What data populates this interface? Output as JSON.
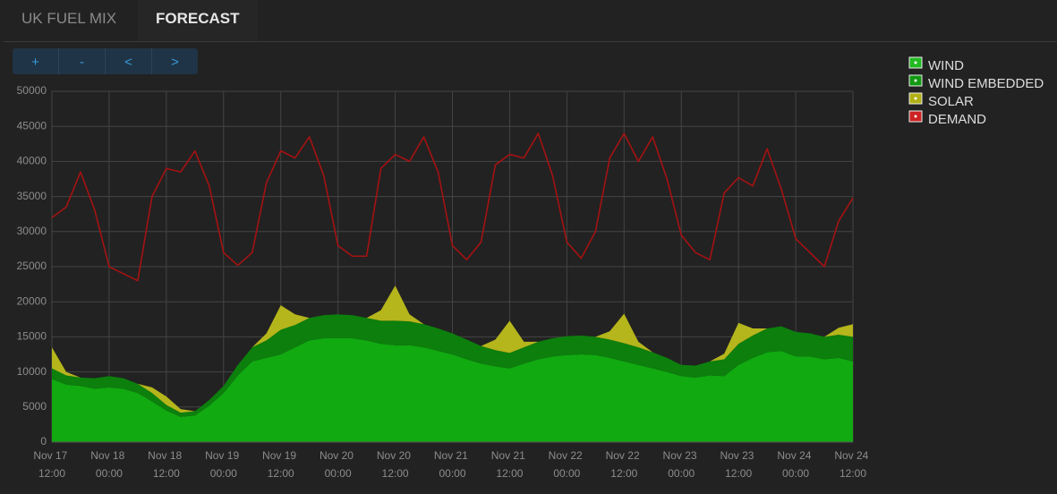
{
  "tabs": [
    "UK FUEL MIX",
    "FORECAST"
  ],
  "controls": [
    "+",
    "-",
    "<",
    ">"
  ],
  "chart_data": {
    "type": "area",
    "stacked": true,
    "grid": true,
    "legend": "right",
    "x": [
      "Nov 17 12:00",
      "Nov 17 15:00",
      "Nov 17 18:00",
      "Nov 17 21:00",
      "Nov 18 00:00",
      "Nov 18 03:00",
      "Nov 18 06:00",
      "Nov 18 09:00",
      "Nov 18 12:00",
      "Nov 18 15:00",
      "Nov 18 18:00",
      "Nov 18 21:00",
      "Nov 19 00:00",
      "Nov 19 03:00",
      "Nov 19 06:00",
      "Nov 19 09:00",
      "Nov 19 12:00",
      "Nov 19 15:00",
      "Nov 19 18:00",
      "Nov 19 21:00",
      "Nov 20 00:00",
      "Nov 20 03:00",
      "Nov 20 06:00",
      "Nov 20 09:00",
      "Nov 20 12:00",
      "Nov 20 15:00",
      "Nov 20 18:00",
      "Nov 20 21:00",
      "Nov 21 00:00",
      "Nov 21 03:00",
      "Nov 21 06:00",
      "Nov 21 09:00",
      "Nov 21 12:00",
      "Nov 21 15:00",
      "Nov 21 18:00",
      "Nov 21 21:00",
      "Nov 22 00:00",
      "Nov 22 03:00",
      "Nov 22 06:00",
      "Nov 22 09:00",
      "Nov 22 12:00",
      "Nov 22 15:00",
      "Nov 22 18:00",
      "Nov 22 21:00",
      "Nov 23 00:00",
      "Nov 23 03:00",
      "Nov 23 06:00",
      "Nov 23 09:00",
      "Nov 23 12:00",
      "Nov 23 15:00",
      "Nov 23 18:00",
      "Nov 23 21:00",
      "Nov 24 00:00",
      "Nov 24 03:00",
      "Nov 24 06:00",
      "Nov 24 09:00",
      "Nov 24 12:00"
    ],
    "xticks": [
      "Nov 17 12:00",
      "Nov 18 00:00",
      "Nov 18 12:00",
      "Nov 19 00:00",
      "Nov 19 12:00",
      "Nov 20 00:00",
      "Nov 20 12:00",
      "Nov 21 00:00",
      "Nov 21 12:00",
      "Nov 22 00:00",
      "Nov 22 12:00",
      "Nov 23 00:00",
      "Nov 23 12:00",
      "Nov 24 00:00",
      "Nov 24 12:00"
    ],
    "ylim": [
      0,
      50000
    ],
    "yticks": [
      0,
      5000,
      10000,
      15000,
      20000,
      25000,
      30000,
      35000,
      40000,
      45000,
      50000
    ],
    "series": [
      {
        "name": "WIND",
        "color": "#11aa11",
        "legend_color": "#22bb22",
        "values": [
          9000,
          8200,
          8000,
          7600,
          7800,
          7600,
          7000,
          5800,
          4500,
          3600,
          3800,
          5200,
          7000,
          9500,
          11500,
          12000,
          12500,
          13500,
          14500,
          14800,
          14800,
          14800,
          14500,
          14000,
          13800,
          13800,
          13500,
          13000,
          12500,
          11800,
          11200,
          10800,
          10500,
          11200,
          11800,
          12200,
          12400,
          12500,
          12400,
          12000,
          11500,
          11000,
          10500,
          10000,
          9400,
          9200,
          9500,
          9400,
          11000,
          12000,
          12800,
          13000,
          12200,
          12200,
          11800,
          12000,
          11500
        ]
      },
      {
        "name": "WIND EMBEDDED",
        "color": "#0c7f0c",
        "legend_color": "#129912",
        "values": [
          1500,
          1300,
          1200,
          1500,
          1600,
          1500,
          1300,
          1200,
          800,
          600,
          600,
          800,
          1000,
          1500,
          2000,
          2500,
          3500,
          3200,
          3200,
          3300,
          3400,
          3300,
          3200,
          3300,
          3500,
          3400,
          3300,
          3200,
          3000,
          2800,
          2500,
          2300,
          2200,
          2300,
          2500,
          2600,
          2700,
          2700,
          2600,
          2600,
          2600,
          2500,
          2300,
          2000,
          1600,
          1700,
          2000,
          2400,
          3000,
          3200,
          3400,
          3500,
          3500,
          3300,
          3200,
          3300,
          3500
        ]
      },
      {
        "name": "SOLAR",
        "color": "#b5b51c",
        "legend_color": "#b0b016",
        "values": [
          3000,
          500,
          0,
          0,
          0,
          0,
          0,
          800,
          1200,
          500,
          0,
          0,
          0,
          0,
          0,
          1000,
          3500,
          1500,
          0,
          0,
          0,
          0,
          0,
          1500,
          5000,
          1000,
          0,
          0,
          0,
          0,
          0,
          1500,
          4600,
          800,
          0,
          0,
          0,
          0,
          0,
          1200,
          4200,
          800,
          0,
          0,
          0,
          0,
          0,
          800,
          3000,
          1000,
          0,
          0,
          0,
          0,
          0,
          1000,
          1800
        ]
      },
      {
        "name": "DEMAND",
        "color": "#a51212",
        "legend_color": "#cc2222",
        "type": "line",
        "values": [
          32000,
          33500,
          38500,
          33000,
          25000,
          24000,
          23000,
          35000,
          39000,
          38500,
          41500,
          36500,
          27000,
          25200,
          27000,
          37000,
          41500,
          40500,
          43500,
          38000,
          28000,
          26500,
          26500,
          39000,
          41000,
          40000,
          43500,
          38500,
          28000,
          26000,
          28500,
          39500,
          41000,
          40500,
          44000,
          38000,
          28500,
          26200,
          30000,
          40500,
          44000,
          40000,
          43500,
          37500,
          29500,
          27000,
          26000,
          35500,
          37700,
          36500,
          41800,
          36000,
          29000,
          27000,
          25000,
          31500,
          34800
        ]
      }
    ]
  }
}
